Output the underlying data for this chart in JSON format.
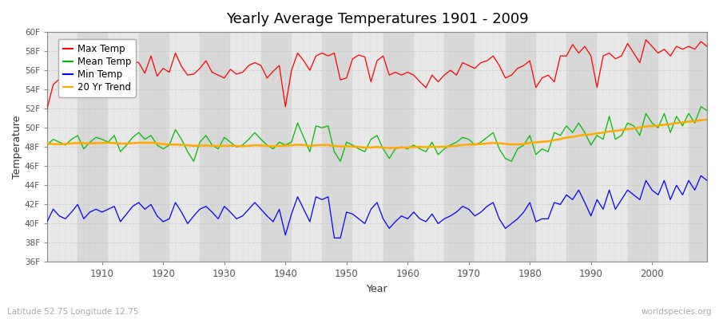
{
  "title": "Yearly Average Temperatures 1901 - 2009",
  "xlabel": "Year",
  "ylabel": "Temperature",
  "lat_lon_text": "Latitude 52.75 Longitude 12.75",
  "watermark": "worldspecies.org",
  "ylim": [
    36,
    60
  ],
  "yticks": [
    36,
    38,
    40,
    42,
    44,
    46,
    48,
    50,
    52,
    54,
    56,
    58,
    60
  ],
  "ytick_labels": [
    "36F",
    "38F",
    "40F",
    "42F",
    "44F",
    "46F",
    "48F",
    "50F",
    "52F",
    "54F",
    "56F",
    "58F",
    "60F"
  ],
  "xlim": [
    1901,
    2009
  ],
  "xticks": [
    1910,
    1920,
    1930,
    1940,
    1950,
    1960,
    1970,
    1980,
    1990,
    2000
  ],
  "colors": {
    "max": "#ff0000",
    "mean": "#00bb00",
    "min": "#0000ff",
    "trend": "#ffaa00",
    "fig_bg": "#ffffff",
    "plot_bg_light": "#e8e8e8",
    "plot_bg_dark": "#d8d8d8",
    "grid_v": "#cccccc",
    "title": "#000000"
  },
  "years": [
    1901,
    1902,
    1903,
    1904,
    1905,
    1906,
    1907,
    1908,
    1909,
    1910,
    1911,
    1912,
    1913,
    1914,
    1915,
    1916,
    1917,
    1918,
    1919,
    1920,
    1921,
    1922,
    1923,
    1924,
    1925,
    1926,
    1927,
    1928,
    1929,
    1930,
    1931,
    1932,
    1933,
    1934,
    1935,
    1936,
    1937,
    1938,
    1939,
    1940,
    1941,
    1942,
    1943,
    1944,
    1945,
    1946,
    1947,
    1948,
    1949,
    1950,
    1951,
    1952,
    1953,
    1954,
    1955,
    1956,
    1957,
    1958,
    1959,
    1960,
    1961,
    1962,
    1963,
    1964,
    1965,
    1966,
    1967,
    1968,
    1969,
    1970,
    1971,
    1972,
    1973,
    1974,
    1975,
    1976,
    1977,
    1978,
    1979,
    1980,
    1981,
    1982,
    1983,
    1984,
    1985,
    1986,
    1987,
    1988,
    1989,
    1990,
    1991,
    1992,
    1993,
    1994,
    1995,
    1996,
    1997,
    1998,
    1999,
    2000,
    2001,
    2002,
    2003,
    2004,
    2005,
    2006,
    2007,
    2008,
    2009
  ],
  "max_temps": [
    52.0,
    54.5,
    55.1,
    54.9,
    55.8,
    55.2,
    54.2,
    55.5,
    56.7,
    56.3,
    56.5,
    56.8,
    55.2,
    56.1,
    57.0,
    56.8,
    55.7,
    57.5,
    55.4,
    56.2,
    55.8,
    57.8,
    56.4,
    55.5,
    55.6,
    56.2,
    57.0,
    55.8,
    55.5,
    55.2,
    56.1,
    55.6,
    55.8,
    56.5,
    56.8,
    56.5,
    55.2,
    55.9,
    56.5,
    52.2,
    56.0,
    57.8,
    57.0,
    56.0,
    57.5,
    57.8,
    57.5,
    57.8,
    55.0,
    55.2,
    57.2,
    57.6,
    57.4,
    54.8,
    57.0,
    57.5,
    55.5,
    55.8,
    55.5,
    55.8,
    55.5,
    54.8,
    54.2,
    55.5,
    54.8,
    55.5,
    56.0,
    55.5,
    56.8,
    56.5,
    56.2,
    56.8,
    57.0,
    57.5,
    56.5,
    55.2,
    55.5,
    56.2,
    56.5,
    57.0,
    54.2,
    55.2,
    55.5,
    54.8,
    57.5,
    57.5,
    58.7,
    57.8,
    58.5,
    57.5,
    54.2,
    57.5,
    57.8,
    57.2,
    57.5,
    58.8,
    57.8,
    56.8,
    59.2,
    58.5,
    57.8,
    58.2,
    57.5,
    58.5,
    58.2,
    58.5,
    58.2,
    59.0,
    58.5
  ],
  "mean_temps": [
    48.2,
    48.8,
    48.5,
    48.2,
    48.8,
    49.2,
    47.8,
    48.5,
    49.0,
    48.8,
    48.5,
    49.2,
    47.5,
    48.2,
    49.0,
    49.5,
    48.8,
    49.2,
    48.2,
    47.8,
    48.2,
    49.8,
    48.8,
    47.5,
    46.5,
    48.5,
    49.2,
    48.2,
    47.8,
    49.0,
    48.5,
    48.0,
    48.2,
    48.8,
    49.5,
    48.8,
    48.2,
    47.8,
    48.5,
    48.2,
    48.5,
    50.5,
    49.0,
    47.5,
    50.2,
    50.0,
    50.2,
    47.5,
    46.5,
    48.5,
    48.2,
    47.8,
    47.5,
    48.8,
    49.2,
    47.8,
    46.8,
    47.8,
    48.0,
    47.8,
    48.2,
    47.8,
    47.5,
    48.5,
    47.2,
    47.8,
    48.2,
    48.5,
    49.0,
    48.8,
    48.2,
    48.5,
    49.0,
    49.5,
    47.8,
    46.8,
    46.5,
    47.8,
    48.2,
    49.2,
    47.2,
    47.8,
    47.5,
    49.5,
    49.2,
    50.2,
    49.5,
    50.5,
    49.5,
    48.2,
    49.2,
    48.8,
    51.2,
    48.8,
    49.2,
    50.5,
    50.2,
    49.2,
    51.5,
    50.5,
    50.0,
    51.5,
    49.5,
    51.2,
    50.2,
    51.5,
    50.5,
    52.2,
    51.8
  ],
  "min_temps": [
    40.2,
    41.5,
    40.8,
    40.5,
    41.2,
    42.0,
    40.5,
    41.2,
    41.5,
    41.2,
    41.5,
    41.8,
    40.2,
    41.0,
    41.8,
    42.2,
    41.5,
    42.0,
    40.8,
    40.2,
    40.5,
    42.2,
    41.2,
    40.0,
    40.8,
    41.5,
    41.8,
    41.2,
    40.5,
    41.8,
    41.2,
    40.5,
    40.8,
    41.5,
    42.2,
    41.5,
    40.8,
    40.2,
    41.5,
    38.8,
    41.0,
    42.8,
    41.5,
    40.2,
    42.8,
    42.5,
    42.8,
    38.5,
    38.5,
    41.2,
    41.0,
    40.5,
    40.0,
    41.5,
    42.2,
    40.5,
    39.5,
    40.2,
    40.8,
    40.5,
    41.2,
    40.5,
    40.2,
    41.0,
    40.0,
    40.5,
    40.8,
    41.2,
    41.8,
    41.5,
    40.8,
    41.2,
    41.8,
    42.2,
    40.5,
    39.5,
    40.0,
    40.5,
    41.2,
    42.2,
    40.2,
    40.5,
    40.5,
    42.2,
    42.0,
    43.0,
    42.5,
    43.5,
    42.2,
    40.8,
    42.5,
    41.5,
    43.5,
    41.5,
    42.5,
    43.5,
    43.0,
    42.5,
    44.5,
    43.5,
    43.0,
    44.5,
    42.5,
    44.0,
    43.0,
    44.5,
    43.5,
    45.0,
    44.5
  ],
  "trend_20yr": [
    48.35,
    48.3,
    48.28,
    48.32,
    48.38,
    48.42,
    48.4,
    48.38,
    48.4,
    48.42,
    48.44,
    48.4,
    48.35,
    48.35,
    48.4,
    48.44,
    48.44,
    48.44,
    48.38,
    48.3,
    48.24,
    48.25,
    48.22,
    48.18,
    48.12,
    48.14,
    48.16,
    48.12,
    48.1,
    48.12,
    48.14,
    48.1,
    48.08,
    48.12,
    48.18,
    48.16,
    48.12,
    48.08,
    48.12,
    48.14,
    48.18,
    48.24,
    48.2,
    48.1,
    48.18,
    48.2,
    48.2,
    48.1,
    48.05,
    48.08,
    48.05,
    48.0,
    47.94,
    47.95,
    48.0,
    47.94,
    47.89,
    47.89,
    47.94,
    47.95,
    48.0,
    48.0,
    47.98,
    48.03,
    48.01,
    48.02,
    48.06,
    48.12,
    48.21,
    48.25,
    48.27,
    48.31,
    48.36,
    48.43,
    48.39,
    48.32,
    48.27,
    48.27,
    48.3,
    48.44,
    48.48,
    48.54,
    48.58,
    48.72,
    48.82,
    48.98,
    49.05,
    49.18,
    49.28,
    49.3,
    49.42,
    49.5,
    49.62,
    49.68,
    49.76,
    49.86,
    49.92,
    50.02,
    50.14,
    50.18,
    50.22,
    50.32,
    50.38,
    50.5,
    50.55,
    50.65,
    50.7,
    50.8,
    50.86
  ]
}
